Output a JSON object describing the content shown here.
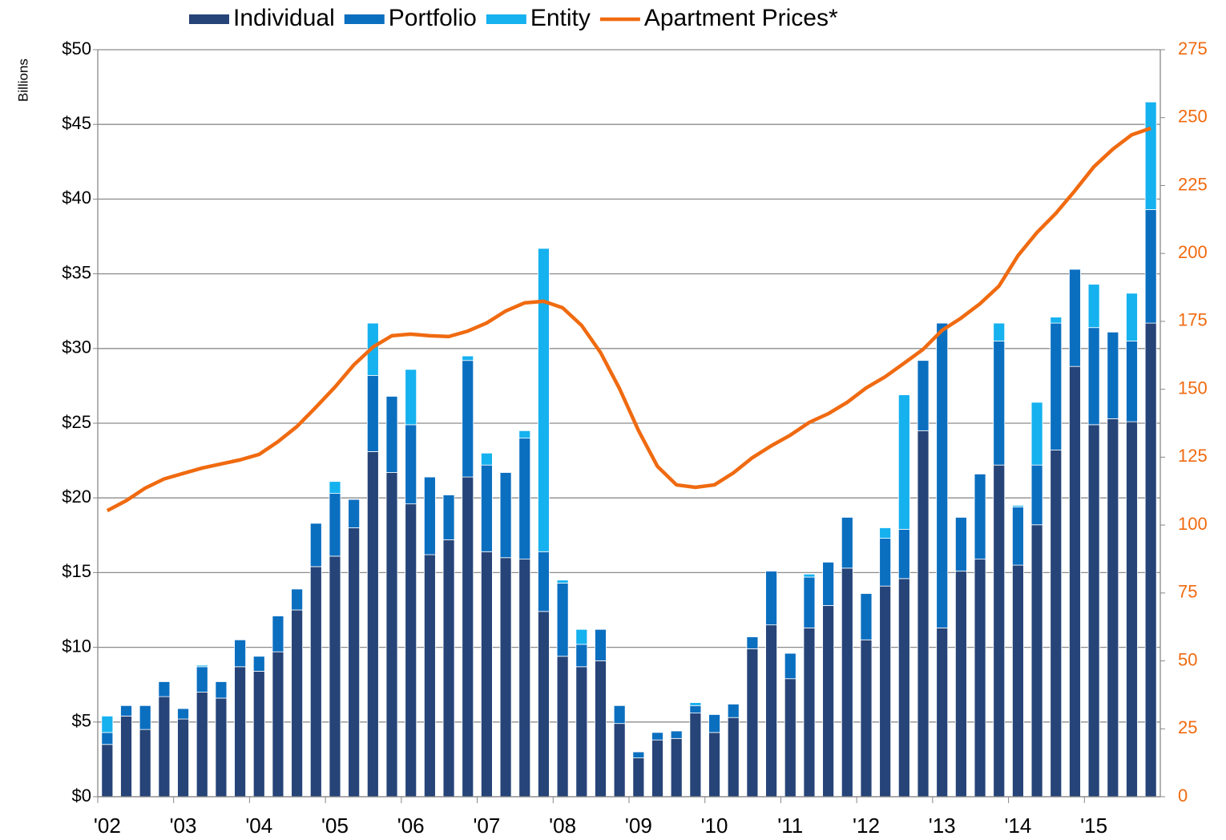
{
  "chart_data": {
    "type": "bar",
    "stacked": true,
    "ylabel": "Billions",
    "categories": [
      "'02",
      null,
      null,
      null,
      "'03",
      null,
      null,
      null,
      "'04",
      null,
      null,
      null,
      "'05",
      null,
      null,
      null,
      "'06",
      null,
      null,
      null,
      "'07",
      null,
      null,
      null,
      "'08",
      null,
      null,
      null,
      "'09",
      null,
      null,
      null,
      "'10",
      null,
      null,
      null,
      "'11",
      null,
      null,
      null,
      "'12",
      null,
      null,
      null,
      "'13",
      null,
      null,
      null,
      "'14",
      null,
      null,
      null,
      "'15",
      null,
      null,
      null
    ],
    "series": [
      {
        "name": "Individual",
        "color": "#264478",
        "values": [
          3.5,
          5.4,
          4.5,
          6.7,
          5.2,
          7.0,
          6.6,
          8.7,
          8.4,
          9.7,
          12.5,
          15.4,
          16.1,
          18.0,
          23.1,
          21.7,
          19.6,
          16.2,
          17.2,
          21.4,
          16.4,
          16.0,
          15.9,
          12.4,
          9.4,
          8.7,
          9.1,
          4.9,
          2.6,
          3.8,
          3.9,
          5.6,
          4.3,
          5.3,
          9.9,
          11.5,
          7.9,
          11.3,
          12.8,
          15.3,
          10.5,
          14.1,
          14.6,
          24.5,
          11.3,
          15.1,
          15.9,
          22.2,
          15.5,
          18.2,
          23.2,
          28.8,
          24.9,
          25.3,
          25.1,
          31.7
        ]
      },
      {
        "name": "Portfolio",
        "color": "#0b6fc0",
        "values": [
          0.8,
          0.7,
          1.6,
          1.0,
          0.7,
          1.7,
          1.1,
          1.8,
          1.0,
          2.4,
          1.4,
          2.9,
          4.2,
          1.9,
          5.1,
          5.1,
          5.3,
          5.2,
          3.0,
          7.8,
          5.8,
          5.7,
          8.1,
          4.0,
          4.9,
          1.5,
          2.1,
          1.2,
          0.4,
          0.5,
          0.5,
          0.5,
          1.2,
          0.9,
          0.8,
          3.6,
          1.7,
          3.4,
          2.9,
          3.4,
          3.1,
          3.2,
          3.3,
          4.7,
          20.4,
          3.6,
          5.7,
          8.3,
          3.9,
          4.0,
          8.5,
          6.5,
          6.5,
          5.8,
          5.4,
          7.6
        ]
      },
      {
        "name": "Entity",
        "color": "#16b1ef",
        "values": [
          1.1,
          0,
          0,
          0,
          0,
          0.1,
          0,
          0,
          0,
          0,
          0,
          0,
          0.8,
          0,
          3.5,
          0,
          3.7,
          0,
          0,
          0.3,
          0.8,
          0,
          0.5,
          20.3,
          0.2,
          1.0,
          0,
          0,
          0,
          0,
          0,
          0.2,
          0,
          0,
          0,
          0,
          0,
          0.2,
          0,
          0,
          0,
          0.7,
          9.0,
          0,
          0,
          0,
          0,
          1.2,
          0.1,
          4.2,
          0.4,
          0,
          2.9,
          0,
          3.2,
          7.2
        ]
      },
      {
        "name": "Apartment Prices*",
        "color": "#f06a10",
        "type": "line",
        "axis": "y2",
        "values": [
          105.3,
          109,
          113.6,
          117,
          119,
          121,
          122.5,
          124,
          126,
          130.7,
          136.3,
          143.4,
          150.8,
          159,
          165.5,
          169.7,
          170.3,
          169.7,
          169.4,
          171.4,
          174.4,
          178.8,
          181.8,
          182.4,
          180,
          173.5,
          163.5,
          150.2,
          134.8,
          121.6,
          114.8,
          113.9,
          114.8,
          119.2,
          124.8,
          129.2,
          133.1,
          137.8,
          141,
          145.2,
          150.5,
          154.6,
          159.6,
          164.7,
          171.7,
          176.2,
          181.5,
          188,
          199.2,
          207.7,
          214.8,
          223.1,
          231.9,
          238.4,
          243.7,
          246.1
        ]
      }
    ],
    "ylim": [
      0,
      50
    ],
    "yticks": [
      {
        "value": 0,
        "label": "$0"
      },
      {
        "value": 5,
        "label": "$5"
      },
      {
        "value": 10,
        "label": "$10"
      },
      {
        "value": 15,
        "label": "$15"
      },
      {
        "value": 20,
        "label": "$20"
      },
      {
        "value": 25,
        "label": "$25"
      },
      {
        "value": 30,
        "label": "$30"
      },
      {
        "value": 35,
        "label": "$35"
      },
      {
        "value": 40,
        "label": "$40"
      },
      {
        "value": 45,
        "label": "$45"
      },
      {
        "value": 50,
        "label": "$50"
      }
    ],
    "y2lim": [
      0,
      275
    ],
    "y2ticks": [
      0,
      25,
      50,
      75,
      100,
      125,
      150,
      175,
      200,
      225,
      250,
      275
    ],
    "grid": true,
    "legend": "top"
  }
}
